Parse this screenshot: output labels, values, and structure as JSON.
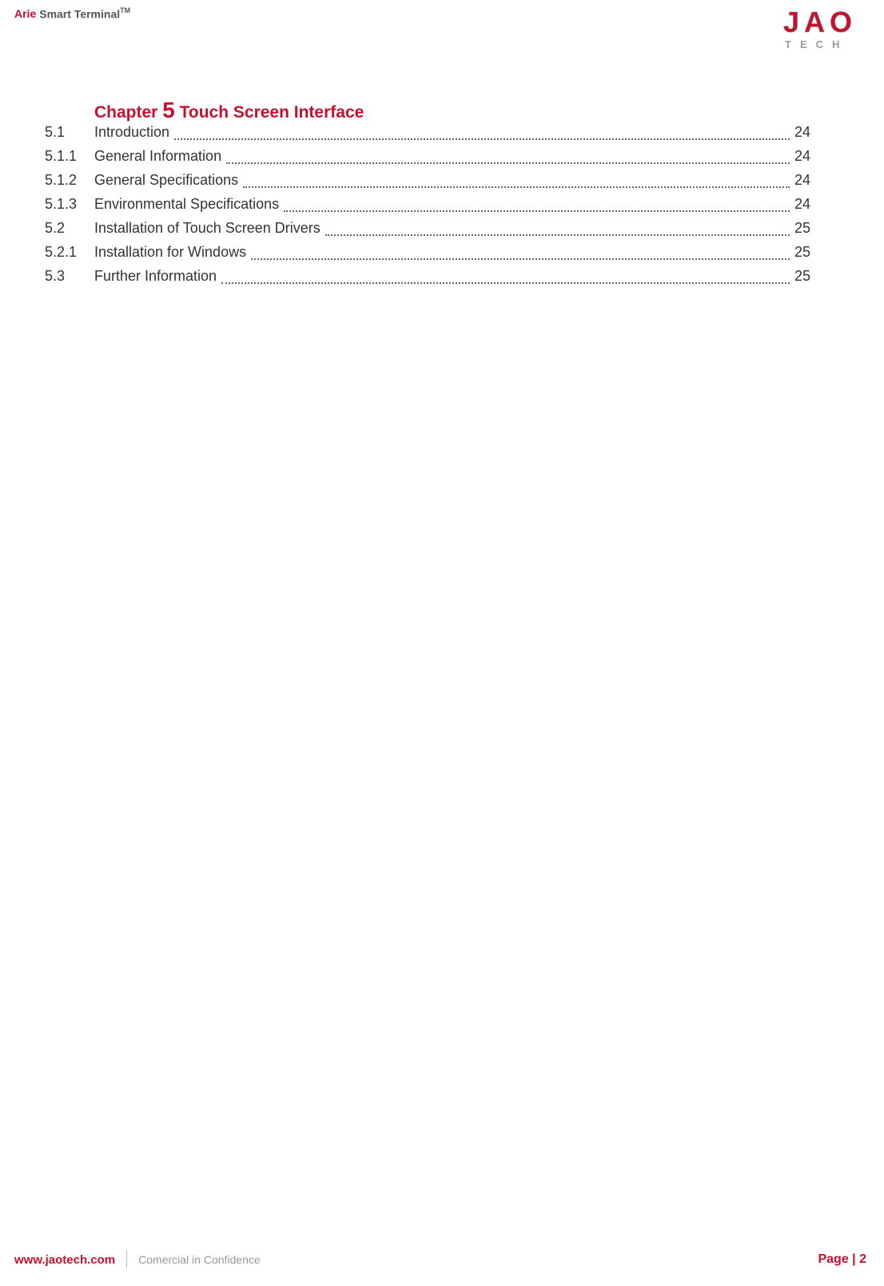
{
  "header": {
    "brand_prefix": "Arie",
    "brand_suffix": "Smart Terminal",
    "trademark": "TM"
  },
  "logo": {
    "main_text": "JAO",
    "sub_text": "T  E  C  H",
    "main_color": "#c8102e",
    "main_outline_color": "#8a8a8a",
    "sub_color": "#9a9a9a"
  },
  "chapter": {
    "prefix": "Chapter",
    "number": "5",
    "title": "Touch Screen Interface"
  },
  "toc": [
    {
      "num": "5.1",
      "title": "Introduction",
      "page": "24"
    },
    {
      "num": "5.1.1",
      "title": "General Information",
      "page": "24"
    },
    {
      "num": "5.1.2",
      "title": "General Specifications",
      "page": "24"
    },
    {
      "num": "5.1.3",
      "title": "Environmental Specifications",
      "page": "24"
    },
    {
      "num": "5.2",
      "title": "Installation of Touch Screen Drivers",
      "page": "25"
    },
    {
      "num": "5.2.1",
      "title": "Installation for Windows",
      "page": "25"
    },
    {
      "num": "5.3",
      "title": "Further Information",
      "page": "25"
    }
  ],
  "footer": {
    "url": "www.jaotech.com",
    "confidential": "Comercial in Confidence",
    "page_label": "Page | 2"
  },
  "colors": {
    "accent": "#c8102e",
    "text": "#333333",
    "muted": "#999999",
    "divider": "#bbbbbb",
    "background": "#ffffff"
  },
  "typography": {
    "body_font": "Verdana",
    "chapter_title_pt": 21,
    "chapter_number_pt": 28,
    "toc_pt": 18,
    "header_pt": 14,
    "footer_pt": 15
  }
}
